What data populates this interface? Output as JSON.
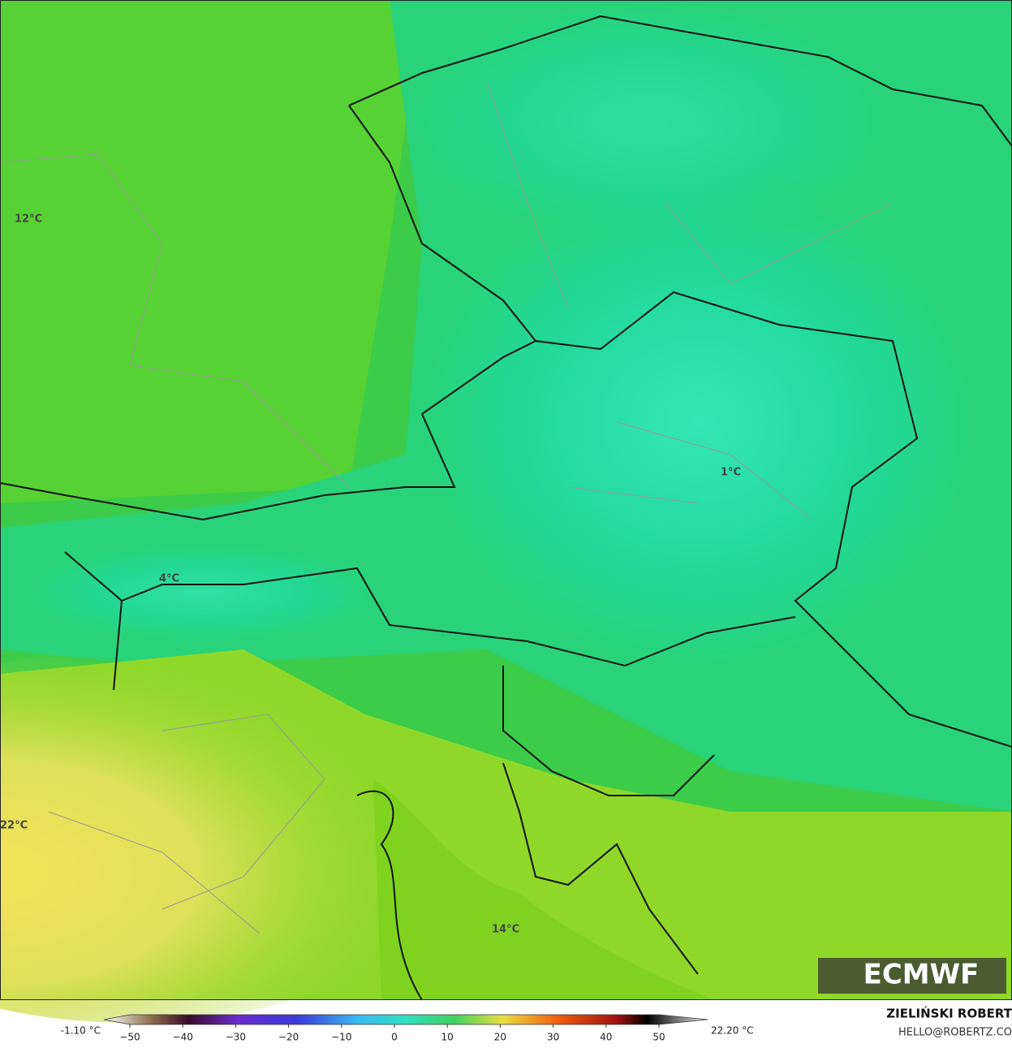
{
  "map": {
    "point_labels": [
      "12°C",
      "1°C",
      "4°C",
      "22°C",
      "14°C"
    ],
    "logo": "ECMWF"
  },
  "colorbar": {
    "min_label": "-1.10 °C",
    "max_label": "22.20 °C",
    "ticks": [
      "−50",
      "−40",
      "−30",
      "−20",
      "−10",
      "0",
      "10",
      "20",
      "30",
      "40",
      "50"
    ]
  },
  "credits": {
    "author": "ZIELIŃSKI ROBERT",
    "contact": "HELLO@ROBERTZ.CO"
  }
}
